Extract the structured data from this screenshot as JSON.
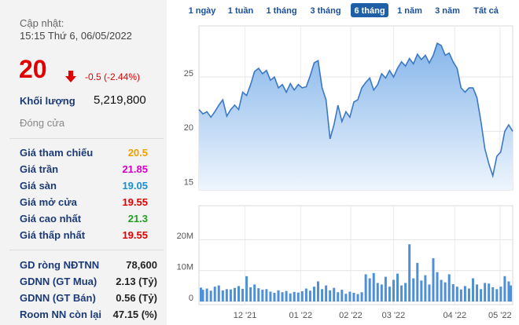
{
  "quote": {
    "updated_label": "Cập nhật:",
    "updated_time": "15:15 Thứ 6, 06/05/2022",
    "price": "20",
    "change": "-0.5 (-2.44%)",
    "volume_label": "Khối lượng",
    "volume": "5,219,800",
    "status": "Đóng cửa"
  },
  "stats": [
    {
      "label": "Giá tham chiếu",
      "value": "20.5",
      "color": "#f0a000"
    },
    {
      "label": "Giá trần",
      "value": "21.85",
      "color": "#d000c8"
    },
    {
      "label": "Giá sàn",
      "value": "19.05",
      "color": "#1a8fd0"
    },
    {
      "label": "Giá mở cửa",
      "value": "19.55",
      "color": "#e00000"
    },
    {
      "label": "Giá cao nhất",
      "value": "21.3",
      "color": "#20a020"
    },
    {
      "label": "Giá thấp nhất",
      "value": "19.55",
      "color": "#e00000"
    }
  ],
  "foreign": [
    {
      "label": "GD ròng NĐTNN",
      "value": "78,600"
    },
    {
      "label": "GDNN (GT Mua)",
      "value": "2.13 (Tỷ)"
    },
    {
      "label": "GDNN (GT Bán)",
      "value": "0.56 (Tỷ)"
    },
    {
      "label": "Room NN còn lại",
      "value": "47.15 (%)"
    }
  ],
  "tabs": {
    "items": [
      "1 ngày",
      "1 tuần",
      "1 tháng",
      "3 tháng",
      "6 tháng",
      "1 năm",
      "3 năm",
      "Tất cả"
    ],
    "active": 4
  },
  "chart_data": [
    {
      "type": "area",
      "color": "#3a78c8",
      "values": [
        22.0,
        21.6,
        21.8,
        21.3,
        21.8,
        22.4,
        22.9,
        21.4,
        22.0,
        22.4,
        22.0,
        23.6,
        23.3,
        24.3,
        25.5,
        25.8,
        25.3,
        25.6,
        24.7,
        25.0,
        24.0,
        24.3,
        23.6,
        24.4,
        23.8,
        24.3,
        24.0,
        24.1,
        25.1,
        26.3,
        26.5,
        24.0,
        22.9,
        19.3,
        20.6,
        22.4,
        20.9,
        21.8,
        21.3,
        22.7,
        22.9,
        24.0,
        24.5,
        24.9,
        23.8,
        24.3,
        25.3,
        24.9,
        25.6,
        25.0,
        25.8,
        26.4,
        26.0,
        26.7,
        26.2,
        27.1,
        26.6,
        27.0,
        26.3,
        27.0,
        28.1,
        27.9,
        27.0,
        27.2,
        26.4,
        25.8,
        24.0,
        23.6,
        24.0,
        24.0,
        23.1,
        20.9,
        18.4,
        17.0,
        15.9,
        17.7,
        18.1,
        20.0,
        20.6,
        20.0
      ],
      "xlim": [
        0,
        79
      ],
      "ylim": [
        14.6,
        29.7
      ],
      "yticks": [
        15,
        20,
        25
      ],
      "grid": true
    },
    {
      "type": "bar",
      "color": "#4f8fd6",
      "values": [
        4500000,
        3800000,
        4200000,
        3500000,
        4800000,
        5200000,
        3600000,
        4000000,
        3900000,
        4400000,
        5000000,
        4100000,
        8200000,
        4600000,
        5500000,
        4300000,
        3800000,
        4000000,
        3200000,
        2800000,
        3600000,
        3000000,
        3400000,
        2600000,
        3100000,
        2900000,
        3300000,
        4200000,
        3500000,
        4800000,
        6500000,
        4000000,
        5200000,
        3600000,
        4400000,
        3000000,
        3800000,
        2500000,
        3200000,
        2800000,
        2400000,
        3000000,
        8800000,
        7500000,
        9200000,
        6000000,
        5500000,
        8000000,
        4800000,
        7000000,
        9000000,
        5200000,
        6000000,
        18500000,
        7500000,
        12500000,
        6800000,
        8500000,
        5500000,
        14000000,
        9500000,
        7000000,
        6200000,
        8800000,
        5600000,
        4800000,
        3900000,
        5000000,
        4200000,
        7500000,
        5500000,
        4000000,
        6000000,
        5800000,
        4600000,
        4000000,
        4800000,
        8200000,
        6500000,
        5200000
      ],
      "xlim": [
        0,
        79
      ],
      "ylim": [
        -1000000,
        31000000
      ],
      "yticks": [
        {
          "value": 20000000,
          "label": "20M"
        },
        {
          "value": 10000000,
          "label": "10M"
        },
        0
      ],
      "xticks": [
        {
          "value": 11.6,
          "label": "12 '21"
        },
        {
          "value": 25.6,
          "label": "01 '22"
        },
        {
          "value": 38.2,
          "label": "02 '22"
        },
        {
          "value": 49,
          "label": "03 '22"
        },
        {
          "value": 64.4,
          "label": "04 '22"
        },
        {
          "value": 75.8,
          "label": "05 '22"
        }
      ],
      "grid": true
    }
  ]
}
